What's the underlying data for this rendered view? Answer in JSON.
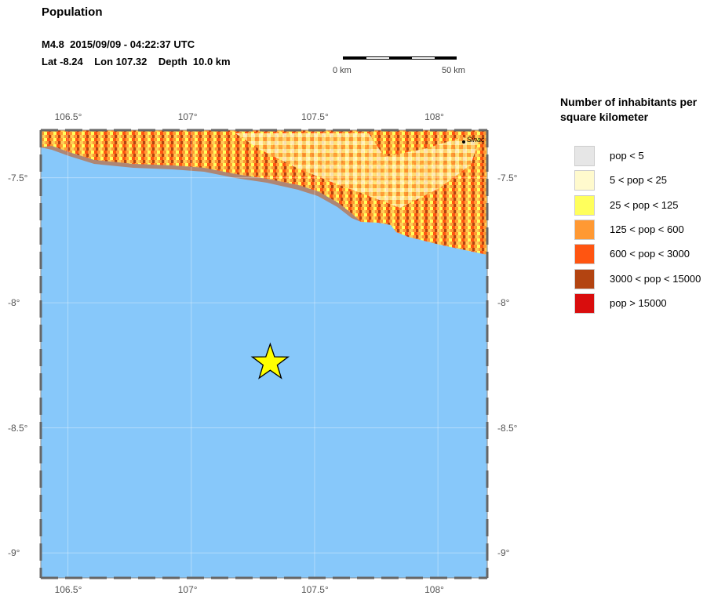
{
  "map": {
    "title": "Population",
    "event_line1": "M4.8  2015/09/09 - 04:22:37 UTC",
    "event_line2": "Lat -8.24    Lon 107.32    Depth  10.0 km",
    "epicenter": {
      "lat": -8.24,
      "lon": 107.32,
      "marker": "star-icon",
      "color": "#ffff00"
    },
    "extent": {
      "lon_min": 106.39,
      "lon_max": 108.2,
      "lat_min": -9.1,
      "lat_max": -7.31
    },
    "ocean_color": "#87c8fa",
    "place_label": "Sinac",
    "scale_bar": {
      "left_label": "0 km",
      "right_label": "50 km"
    },
    "x_ticks": [
      {
        "value": 106.5,
        "label": "106.5°"
      },
      {
        "value": 107,
        "label": "107°"
      },
      {
        "value": 107.5,
        "label": "107.5°"
      },
      {
        "value": 108,
        "label": "108°"
      }
    ],
    "y_ticks": [
      {
        "value": -7.5,
        "label": "-7.5°"
      },
      {
        "value": -8,
        "label": "-8°"
      },
      {
        "value": -8.5,
        "label": "-8.5°"
      },
      {
        "value": -9,
        "label": "-9°"
      }
    ]
  },
  "legend": {
    "title": "Number of inhabitants per square kilometer",
    "items": [
      {
        "label": "pop < 5",
        "color": "#e6e6e6"
      },
      {
        "label": "5 < pop < 25",
        "color": "#fffacd"
      },
      {
        "label": "25 < pop < 125",
        "color": "#ffff5c"
      },
      {
        "label": "125 < pop < 600",
        "color": "#ff9933"
      },
      {
        "label": "600 < pop < 3000",
        "color": "#ff5511"
      },
      {
        "label": "3000 < pop < 15000",
        "color": "#b34411"
      },
      {
        "label": "pop > 15000",
        "color": "#d90d0d"
      }
    ]
  }
}
